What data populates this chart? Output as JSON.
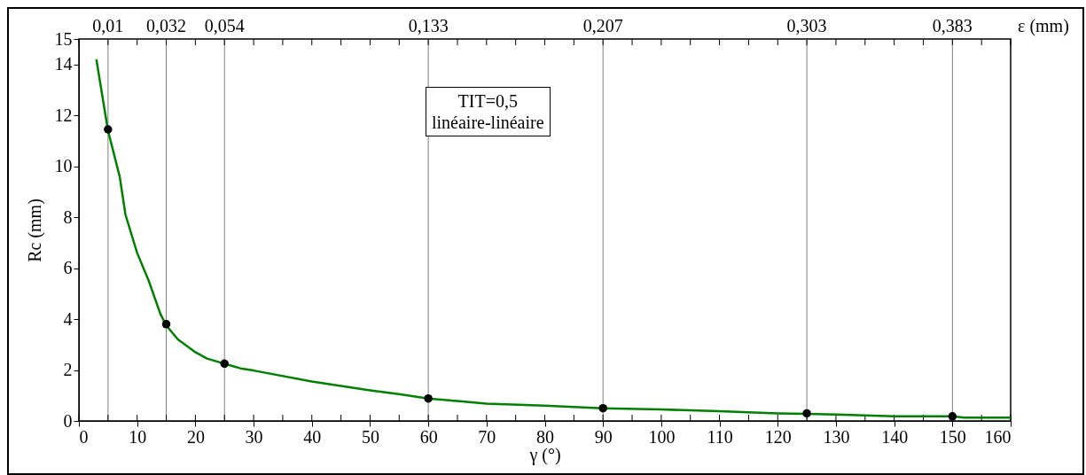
{
  "chart_data": {
    "type": "line",
    "xlabel": "γ (°)",
    "ylabel": "Rc (mm)",
    "annotations": [
      "TIT=0,5",
      "linéaire-linéaire",
      "ε (mm)",
      {
        "text": "0,01",
        "x": 5,
        "y": 15
      },
      {
        "text": "0,032",
        "x": 15,
        "y": 15
      },
      {
        "text": "0,054",
        "x": 25,
        "y": 15
      },
      {
        "text": "0,133",
        "x": 60,
        "y": 15
      },
      {
        "text": "0,207",
        "x": 90,
        "y": 15
      },
      {
        "text": "0,303",
        "x": 125,
        "y": 15
      },
      {
        "text": "0,383",
        "x": 150,
        "y": 15
      }
    ],
    "xlim": [
      0,
      160
    ],
    "ylim": [
      0,
      15
    ],
    "xticks": [
      0,
      {
        "value": 5,
        "label": null
      },
      10,
      {
        "value": 15,
        "label": null
      },
      20,
      {
        "value": 25,
        "label": null
      },
      30,
      {
        "value": 35,
        "label": null
      },
      40,
      {
        "value": 45,
        "label": null
      },
      50,
      {
        "value": 55,
        "label": null
      },
      60,
      {
        "value": 65,
        "label": null
      },
      70,
      {
        "value": 75,
        "label": null
      },
      80,
      {
        "value": 85,
        "label": null
      },
      90,
      {
        "value": 95,
        "label": null
      },
      100,
      {
        "value": 105,
        "label": null
      },
      110,
      {
        "value": 115,
        "label": null
      },
      120,
      {
        "value": 125,
        "label": null
      },
      130,
      {
        "value": 135,
        "label": null
      },
      140,
      {
        "value": 145,
        "label": null
      },
      150,
      {
        "value": 155,
        "label": null
      },
      160
    ],
    "yticks": [
      0,
      2,
      4,
      6,
      8,
      10,
      12,
      14,
      15
    ],
    "ref_lines": [
      {
        "axis": "x",
        "value": 5,
        "color": "#808080"
      },
      {
        "axis": "x",
        "value": 15,
        "color": "#808080"
      },
      {
        "axis": "x",
        "value": 25,
        "color": "#808080"
      },
      {
        "axis": "x",
        "value": 60,
        "color": "#808080"
      },
      {
        "axis": "x",
        "value": 90,
        "color": "#808080"
      },
      {
        "axis": "x",
        "value": 125,
        "color": "#808080"
      },
      {
        "axis": "x",
        "value": 150,
        "color": "#808080"
      }
    ],
    "series": [
      {
        "color": "#008000",
        "line_style": "solid",
        "marker": "none",
        "x": [
          3,
          5,
          7,
          8,
          10,
          12,
          14,
          15,
          17,
          20,
          22,
          25,
          28,
          30,
          40,
          50,
          55,
          60,
          65,
          70,
          80,
          85,
          90,
          100,
          110,
          120,
          125,
          130,
          140,
          150,
          152,
          160
        ],
        "values": [
          14.2,
          11.4,
          9.6,
          8.1,
          6.6,
          5.5,
          4.2,
          3.75,
          3.2,
          2.7,
          2.45,
          2.25,
          2.05,
          1.98,
          1.55,
          1.2,
          1.05,
          0.88,
          0.78,
          0.68,
          0.6,
          0.55,
          0.5,
          0.45,
          0.38,
          0.3,
          0.28,
          0.25,
          0.18,
          0.18,
          0.13,
          0.13
        ]
      },
      {
        "type": "scatter",
        "color": "#000000",
        "marker": "circle",
        "x": [
          5,
          15,
          25,
          60,
          90,
          125,
          150
        ],
        "values": [
          11.45,
          3.8,
          2.25,
          0.88,
          0.5,
          0.3,
          0.18
        ]
      }
    ]
  }
}
